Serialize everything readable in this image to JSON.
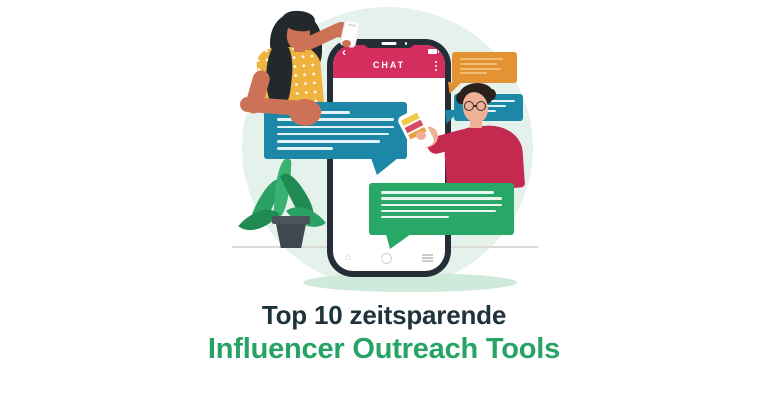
{
  "banner": {
    "title_line1": "Top 10 zeitsparende",
    "title_line2": "Influencer Outreach Tools",
    "colors": {
      "title_dark": "#1e333b",
      "title_green": "#27a465",
      "background_circle": "#e5f2ec",
      "phone_frame": "#252d36",
      "chat_header_pink": "#d42e5f",
      "teal_bubble": "#1c87a6",
      "green_bubble": "#29a766",
      "orange_bubble": "#e49334",
      "shirt_red": "#c4294f",
      "top_yellow": "#efb440"
    }
  },
  "phone": {
    "header_label": "CHAT",
    "icons": {
      "status_left": "back-arrow-icon",
      "status_right": "battery-icon",
      "header_right": "kebab-menu-icon",
      "nav": [
        "home-icon",
        "circle-icon",
        "hamburger-menu-icon"
      ]
    },
    "back_arrow_glyph": "‹"
  },
  "bubbles": {
    "left_teal_lines": [
      "62%",
      "100%",
      "100%",
      "96%",
      "88%",
      "48%"
    ],
    "orange_lines": [
      "88%",
      "76%",
      "84%",
      "56%"
    ],
    "right_teal_lines": [
      "100%",
      "74%",
      "46%"
    ],
    "green_lines": [
      "93%",
      "100%",
      "100%",
      "95%",
      "56%"
    ]
  }
}
